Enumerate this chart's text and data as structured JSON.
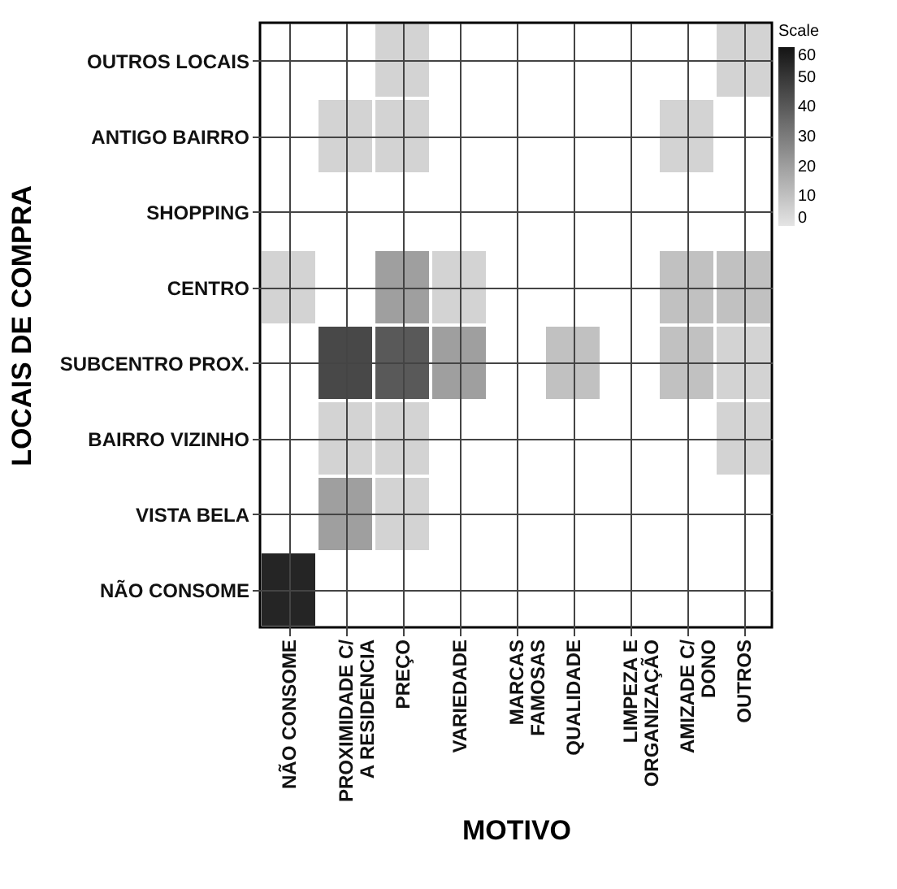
{
  "chart_data": {
    "type": "heatmap",
    "xlabel": "MOTIVO",
    "ylabel": "LOCAIS DE COMPRA",
    "legend_title": "Scale",
    "categories": [
      "NÃO CONSOME",
      "PROXIMIDADE C/\nA RESIDENCIA",
      "PREÇO",
      "VARIEDADE",
      "MARCAS\nFAMOSAS",
      "QUALIDADE",
      "LIMPEZA E\nORGANIZAÇÃO",
      "AMIZADE C/\nDONO",
      "OUTROS"
    ],
    "y_categories": [
      "OUTROS LOCAIS",
      "ANTIGO BAIRRO",
      "SHOPPING",
      "CENTRO",
      "SUBCENTRO PROX.",
      "BAIRRO VIZINHO",
      "VISTA BELA",
      "NÃO CONSOME"
    ],
    "cells": [
      [
        null,
        null,
        5,
        null,
        null,
        null,
        null,
        null,
        5
      ],
      [
        null,
        5,
        5,
        null,
        null,
        null,
        null,
        5,
        null
      ],
      [
        null,
        null,
        null,
        null,
        null,
        null,
        null,
        null,
        null
      ],
      [
        5,
        null,
        20,
        5,
        null,
        null,
        null,
        10,
        10
      ],
      [
        null,
        45,
        40,
        20,
        null,
        10,
        null,
        10,
        5
      ],
      [
        null,
        5,
        5,
        null,
        null,
        null,
        null,
        null,
        5
      ],
      [
        null,
        20,
        5,
        null,
        null,
        null,
        null,
        null,
        null
      ],
      [
        55,
        null,
        null,
        null,
        null,
        null,
        null,
        null,
        null
      ]
    ],
    "clim": [
      0,
      60
    ],
    "cticks": [
      0,
      10,
      20,
      30,
      40,
      50,
      60
    ],
    "grid": true
  }
}
